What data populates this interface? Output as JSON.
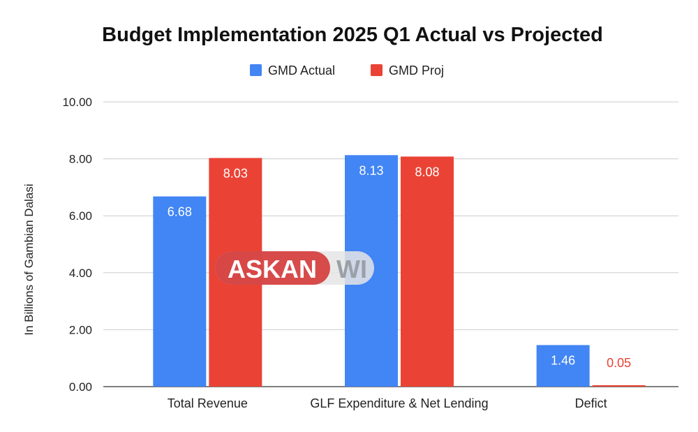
{
  "chart_data": {
    "type": "bar",
    "title": "Budget Implementation 2025 Q1 Actual vs Projected",
    "ylabel": "In Billions of Gambian Dalasi",
    "xlabel": "",
    "ylim": [
      0,
      10
    ],
    "yticks": [
      "0.00",
      "2.00",
      "4.00",
      "6.00",
      "8.00",
      "10.00"
    ],
    "grid": true,
    "legend_position": "top",
    "categories": [
      "Total Revenue",
      "GLF Expenditure & Net Lending",
      "Defict"
    ],
    "series": [
      {
        "name": "GMD Actual",
        "color": "#4285f4",
        "values": [
          6.68,
          8.13,
          1.46
        ],
        "labels": [
          "6.68",
          "8.13",
          "1.46"
        ]
      },
      {
        "name": "GMD Proj",
        "color": "#ea4335",
        "values": [
          8.03,
          8.08,
          0.05
        ],
        "labels": [
          "8.03",
          "8.08",
          "0.05"
        ]
      }
    ]
  },
  "watermark": {
    "text_left": "ASKAN",
    "text_right": "WI"
  }
}
